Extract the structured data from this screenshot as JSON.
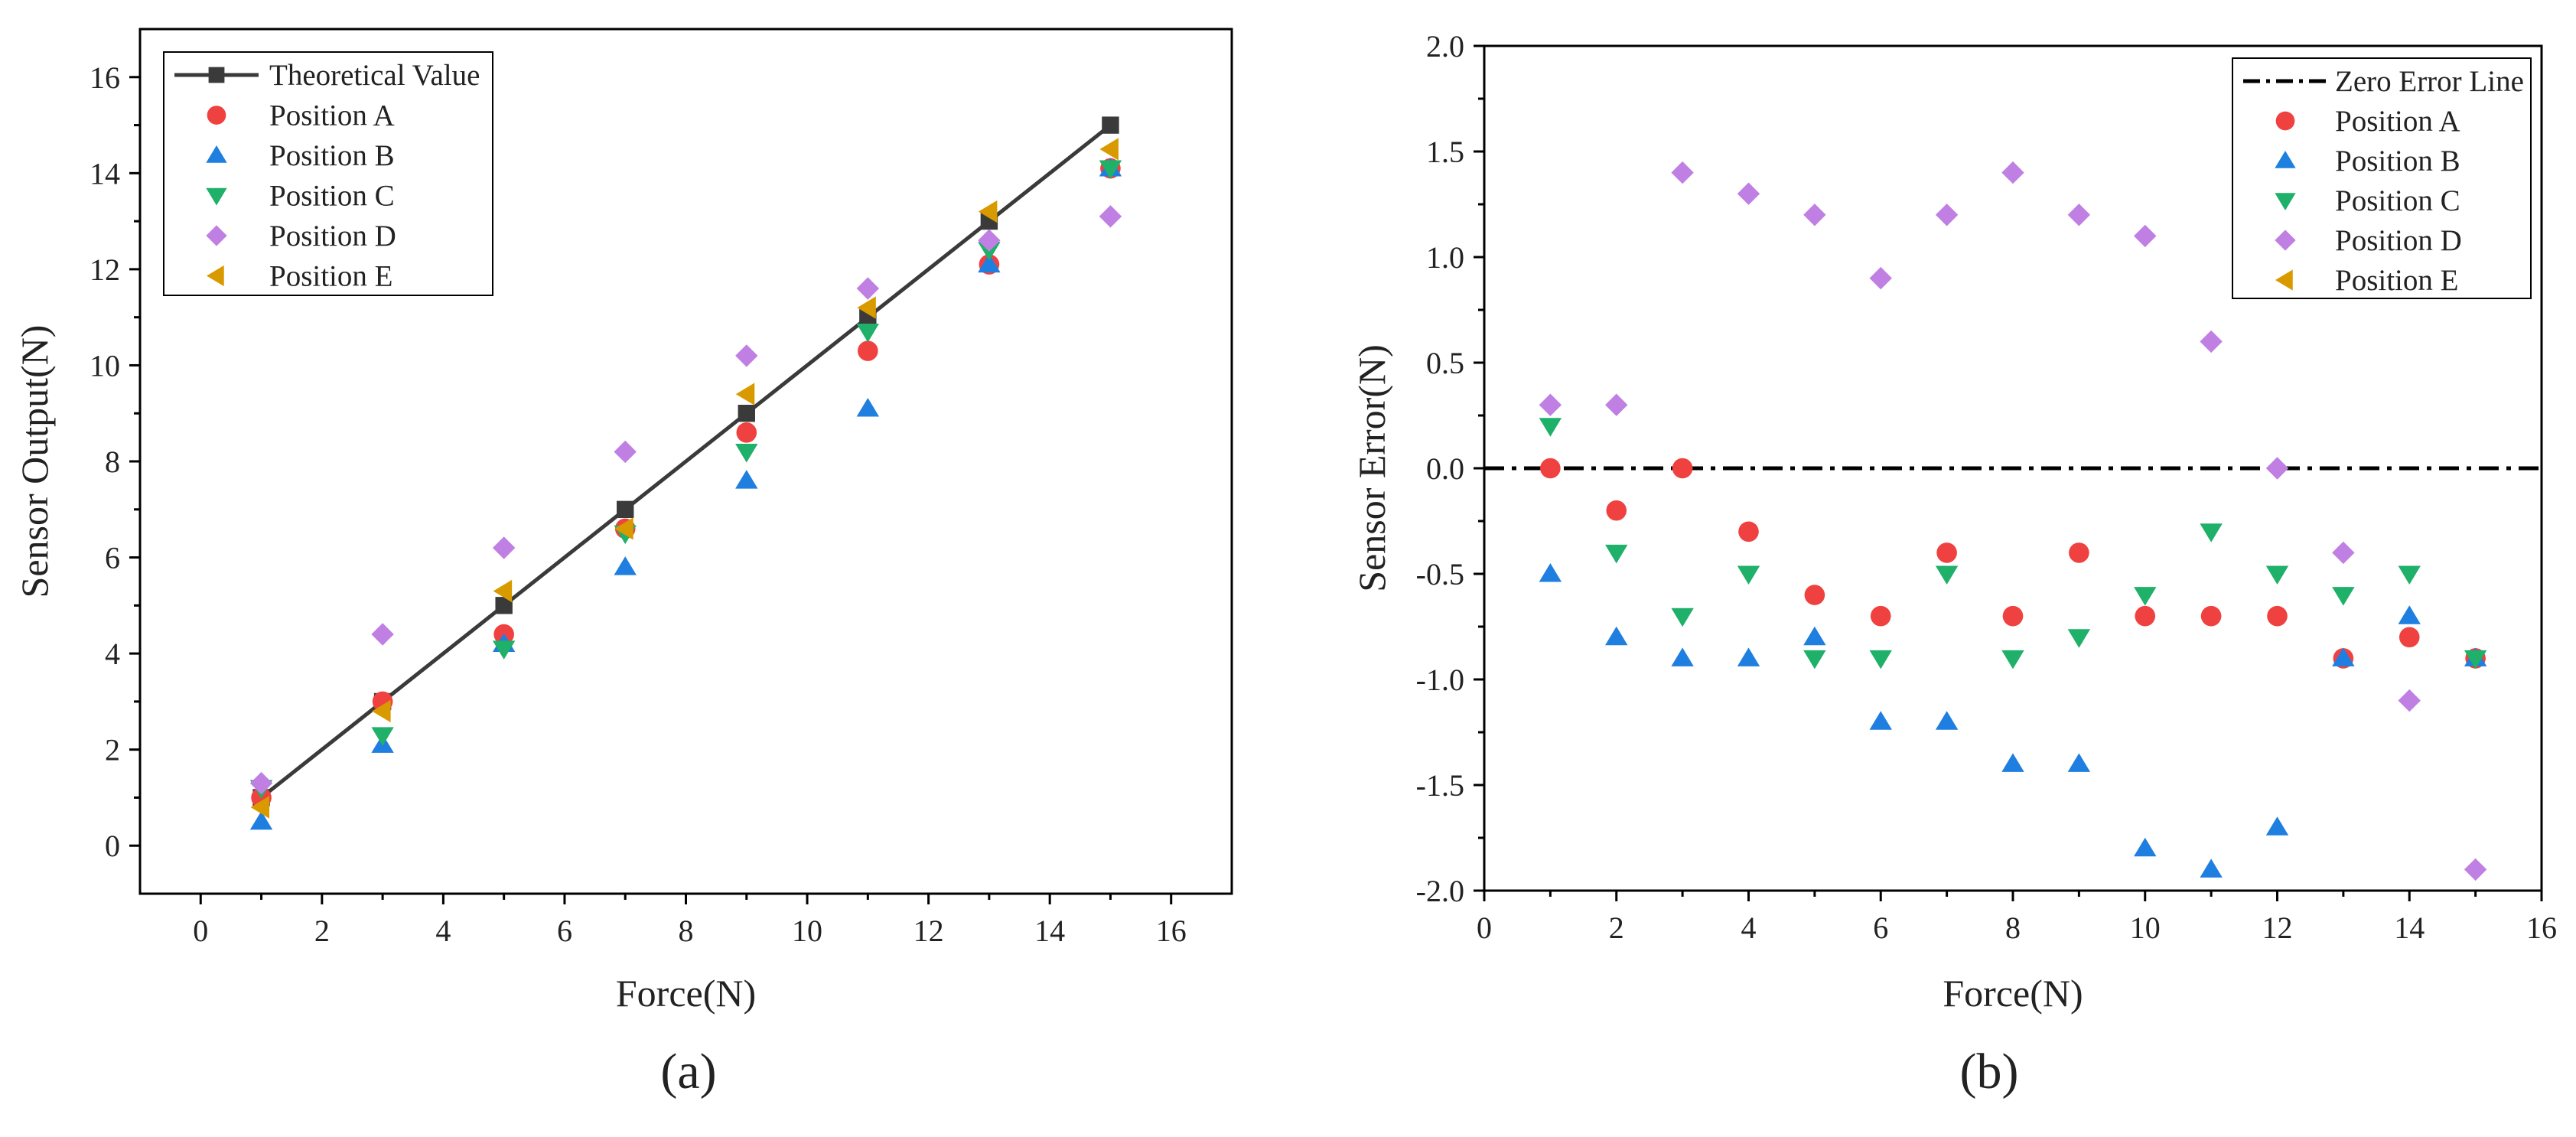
{
  "colors": {
    "theoretical": "#3a3a3a",
    "position_a": "#f04141",
    "position_b": "#1e7fe0",
    "position_c": "#1fb069",
    "position_d": "#c07fe2",
    "position_e": "#d99a00"
  },
  "chart_data": [
    {
      "type": "scatter",
      "panel_label": "(a)",
      "xlabel": "Force(N)",
      "ylabel": "Sensor Output(N)",
      "xlim": [
        -1,
        17
      ],
      "ylim": [
        -1,
        17
      ],
      "xticks": [
        0,
        2,
        4,
        6,
        8,
        10,
        12,
        14,
        16
      ],
      "yticks": [
        0,
        2,
        4,
        6,
        8,
        10,
        12,
        14,
        16
      ],
      "legend_position": "top-left",
      "series": [
        {
          "name": "Theoretical Value",
          "marker": "square",
          "line": "solid",
          "color": "#3a3a3a",
          "x": [
            1,
            3,
            5,
            7,
            9,
            11,
            13,
            15
          ],
          "y": [
            1,
            3,
            5,
            7,
            9,
            11,
            13,
            15
          ]
        },
        {
          "name": "Position A",
          "marker": "circle",
          "color": "#f04141",
          "x": [
            1,
            3,
            5,
            7,
            9,
            11,
            13,
            15
          ],
          "y": [
            1.0,
            3.0,
            4.4,
            6.6,
            8.6,
            10.3,
            12.1,
            14.1
          ]
        },
        {
          "name": "Position B",
          "marker": "triangle-up",
          "color": "#1e7fe0",
          "x": [
            1,
            3,
            5,
            7,
            9,
            11,
            13,
            15
          ],
          "y": [
            0.5,
            2.1,
            4.2,
            5.8,
            7.6,
            9.1,
            12.1,
            14.1
          ]
        },
        {
          "name": "Position C",
          "marker": "triangle-down",
          "color": "#1fb069",
          "x": [
            1,
            3,
            5,
            7,
            9,
            11,
            13,
            15
          ],
          "y": [
            1.2,
            2.3,
            4.1,
            6.5,
            8.2,
            10.7,
            12.4,
            14.1
          ]
        },
        {
          "name": "Position D",
          "marker": "diamond",
          "color": "#c07fe2",
          "x": [
            1,
            3,
            5,
            7,
            9,
            11,
            13,
            15
          ],
          "y": [
            1.3,
            4.4,
            6.2,
            8.2,
            10.2,
            11.6,
            12.6,
            13.1
          ]
        },
        {
          "name": "Position E",
          "marker": "triangle-left",
          "color": "#d99a00",
          "x": [
            1,
            3,
            5,
            7,
            9,
            11,
            13,
            15
          ],
          "y": [
            0.8,
            2.8,
            5.3,
            6.6,
            9.4,
            11.2,
            13.2,
            14.5
          ]
        }
      ]
    },
    {
      "type": "scatter",
      "panel_label": "(b)",
      "xlabel": "Force(N)",
      "ylabel": "Sensor Error(N)",
      "xlim": [
        0,
        16
      ],
      "ylim": [
        -2.0,
        2.0
      ],
      "xticks": [
        0,
        2,
        4,
        6,
        8,
        10,
        12,
        14,
        16
      ],
      "yticks": [
        "-2.0",
        "-1.5",
        "-1.0",
        "-0.5",
        "0.0",
        "0.5",
        "1.0",
        "1.5",
        "2.0"
      ],
      "legend_position": "top-right",
      "series": [
        {
          "name": "Zero Error Line",
          "marker": "none",
          "line": "dash-dot",
          "color": "#000000",
          "x": [
            0,
            16
          ],
          "y": [
            0,
            0
          ]
        },
        {
          "name": "Position A",
          "marker": "circle",
          "color": "#f04141",
          "x": [
            1,
            2,
            3,
            4,
            5,
            6,
            7,
            8,
            9,
            10,
            11,
            12,
            13,
            14,
            15
          ],
          "y": [
            0.0,
            -0.2,
            0.0,
            -0.3,
            -0.6,
            -0.7,
            -0.4,
            -0.7,
            -0.4,
            -0.7,
            -0.7,
            -0.7,
            -0.9,
            -0.8,
            -0.9
          ]
        },
        {
          "name": "Position B",
          "marker": "triangle-up",
          "color": "#1e7fe0",
          "x": [
            1,
            2,
            3,
            4,
            5,
            6,
            7,
            8,
            9,
            10,
            11,
            12,
            13,
            14,
            15
          ],
          "y": [
            -0.5,
            -0.8,
            -0.9,
            -0.9,
            -0.8,
            -1.2,
            -1.2,
            -1.4,
            -1.4,
            -1.8,
            -1.9,
            -1.7,
            -0.9,
            -0.7,
            -0.9
          ]
        },
        {
          "name": "Position C",
          "marker": "triangle-down",
          "color": "#1fb069",
          "x": [
            1,
            2,
            3,
            4,
            5,
            6,
            7,
            8,
            9,
            10,
            11,
            12,
            13,
            14,
            15
          ],
          "y": [
            0.2,
            -0.4,
            -0.7,
            -0.5,
            -0.9,
            -0.9,
            -0.5,
            -0.9,
            -0.8,
            -0.6,
            -0.3,
            -0.5,
            -0.6,
            -0.5,
            -0.9
          ]
        },
        {
          "name": "Position D",
          "marker": "diamond",
          "color": "#c07fe2",
          "x": [
            1,
            2,
            3,
            4,
            5,
            6,
            7,
            8,
            9,
            10,
            11,
            12,
            13,
            14,
            15
          ],
          "y": [
            0.3,
            0.3,
            1.4,
            1.3,
            1.2,
            0.9,
            1.2,
            1.4,
            1.2,
            1.1,
            0.6,
            0.0,
            -0.4,
            -1.1,
            -1.9
          ]
        },
        {
          "name": "Position E",
          "marker": "triangle-left",
          "color": "#d99a00",
          "x": [],
          "y": []
        }
      ]
    }
  ]
}
